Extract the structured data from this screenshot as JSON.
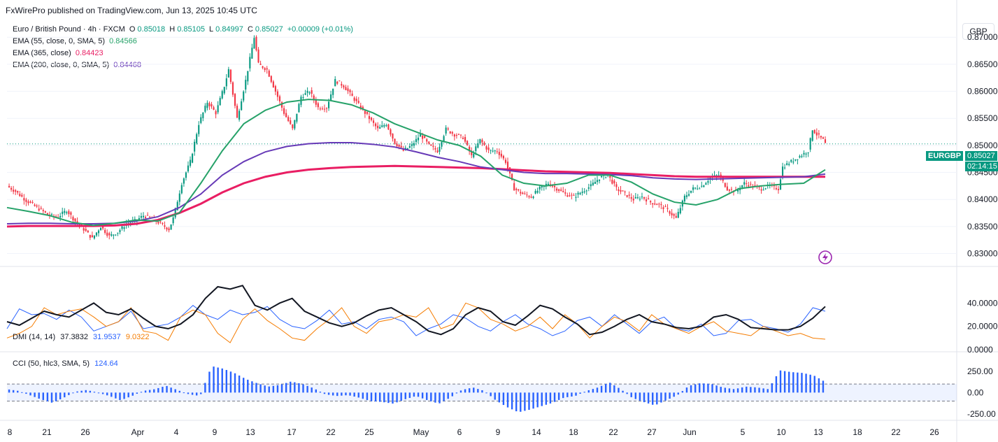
{
  "header": {
    "publisher": "FxWirePro published on TradingView.com, Jun 13, 2025 10:45 UTC"
  },
  "legend": {
    "symbol": "Euro / British Pound · 4h · FXCM",
    "o_label": "O",
    "o": "0.85018",
    "h_label": "H",
    "h": "0.85105",
    "l_label": "L",
    "l": "0.84997",
    "c_label": "C",
    "c": "0.85027",
    "change": "+0.00009 (+0.01%)",
    "ema55_label": "EMA (55, close, 0, SMA, 5)",
    "ema55_value": "0.84566",
    "ema365_label": "EMA (365, close)",
    "ema365_value": "0.84423",
    "ema200_label": "EMA (200, close, 0, SMA, 5)",
    "ema200_value": "0.84468"
  },
  "currency": "GBP",
  "price_tag": {
    "symbol": "EURGBP",
    "price": "0.85027",
    "countdown": "02:14:15"
  },
  "colors": {
    "up": "#089981",
    "down": "#f23645",
    "ema55": "#26a269",
    "ema365": "#e91e63",
    "ema200": "#673ab7",
    "dmi_adx": "#131722",
    "dmi_plus": "#2962ff",
    "dmi_minus": "#f57c00",
    "cci": "#2962ff"
  },
  "dmi": {
    "label": "DMI (14, 14)",
    "adx": "37.3832",
    "plus": "31.9537",
    "minus": "9.0322"
  },
  "cci": {
    "label": "CCI (50, hlc3, SMA, 5)",
    "value": "124.64"
  },
  "chart_data": {
    "type": "candlestick",
    "title": "Euro / British Pound · 4h · FXCM",
    "x_ticks": [
      "8",
      "21",
      "26",
      "Apr",
      "4",
      "9",
      "13",
      "17",
      "22",
      "25",
      "May",
      "6",
      "9",
      "14",
      "18",
      "22",
      "27",
      "Jun",
      "5",
      "10",
      "13",
      "18",
      "22",
      "26"
    ],
    "price_ticks": [
      "0.87000",
      "0.86500",
      "0.86000",
      "0.85500",
      "0.85000",
      "0.84500",
      "0.84000",
      "0.83500",
      "0.83000"
    ],
    "dmi_ticks": [
      "40.0000",
      "20.0000",
      "0.0000"
    ],
    "cci_ticks": [
      "250.00",
      "0.00",
      "-250.00"
    ],
    "ylim": [
      0.828,
      0.873
    ],
    "last_price": 0.85027,
    "close_path": [
      {
        "t": 0,
        "v": 0.8425
      },
      {
        "t": 4,
        "v": 0.8415
      },
      {
        "t": 9,
        "v": 0.8398
      },
      {
        "t": 14,
        "v": 0.8385
      },
      {
        "t": 20,
        "v": 0.837
      },
      {
        "t": 24,
        "v": 0.8368
      },
      {
        "t": 28,
        "v": 0.838
      },
      {
        "t": 32,
        "v": 0.836
      },
      {
        "t": 36,
        "v": 0.8345
      },
      {
        "t": 40,
        "v": 0.8328
      },
      {
        "t": 44,
        "v": 0.835
      },
      {
        "t": 48,
        "v": 0.8332
      },
      {
        "t": 52,
        "v": 0.834
      },
      {
        "t": 56,
        "v": 0.8355
      },
      {
        "t": 60,
        "v": 0.836
      },
      {
        "t": 64,
        "v": 0.837
      },
      {
        "t": 68,
        "v": 0.8365
      },
      {
        "t": 72,
        "v": 0.8355
      },
      {
        "t": 76,
        "v": 0.8345
      },
      {
        "t": 78,
        "v": 0.8365
      },
      {
        "t": 82,
        "v": 0.843
      },
      {
        "t": 86,
        "v": 0.847
      },
      {
        "t": 90,
        "v": 0.854
      },
      {
        "t": 94,
        "v": 0.858
      },
      {
        "t": 98,
        "v": 0.856
      },
      {
        "t": 102,
        "v": 0.861
      },
      {
        "t": 104,
        "v": 0.864
      },
      {
        "t": 108,
        "v": 0.855
      },
      {
        "t": 112,
        "v": 0.862
      },
      {
        "t": 116,
        "v": 0.87
      },
      {
        "t": 118,
        "v": 0.865
      },
      {
        "t": 122,
        "v": 0.864
      },
      {
        "t": 126,
        "v": 0.86
      },
      {
        "t": 130,
        "v": 0.856
      },
      {
        "t": 134,
        "v": 0.853
      },
      {
        "t": 138,
        "v": 0.859
      },
      {
        "t": 142,
        "v": 0.86
      },
      {
        "t": 146,
        "v": 0.857
      },
      {
        "t": 150,
        "v": 0.857
      },
      {
        "t": 154,
        "v": 0.862
      },
      {
        "t": 158,
        "v": 0.861
      },
      {
        "t": 162,
        "v": 0.859
      },
      {
        "t": 166,
        "v": 0.857
      },
      {
        "t": 170,
        "v": 0.855
      },
      {
        "t": 174,
        "v": 0.853
      },
      {
        "t": 178,
        "v": 0.854
      },
      {
        "t": 182,
        "v": 0.8505
      },
      {
        "t": 186,
        "v": 0.849
      },
      {
        "t": 190,
        "v": 0.85
      },
      {
        "t": 194,
        "v": 0.852
      },
      {
        "t": 198,
        "v": 0.85
      },
      {
        "t": 202,
        "v": 0.849
      },
      {
        "t": 206,
        "v": 0.853
      },
      {
        "t": 210,
        "v": 0.852
      },
      {
        "t": 214,
        "v": 0.8515
      },
      {
        "t": 218,
        "v": 0.848
      },
      {
        "t": 222,
        "v": 0.851
      },
      {
        "t": 226,
        "v": 0.849
      },
      {
        "t": 230,
        "v": 0.849
      },
      {
        "t": 234,
        "v": 0.847
      },
      {
        "t": 238,
        "v": 0.842
      },
      {
        "t": 242,
        "v": 0.841
      },
      {
        "t": 246,
        "v": 0.8405
      },
      {
        "t": 250,
        "v": 0.842
      },
      {
        "t": 254,
        "v": 0.843
      },
      {
        "t": 258,
        "v": 0.842
      },
      {
        "t": 262,
        "v": 0.841
      },
      {
        "t": 266,
        "v": 0.8405
      },
      {
        "t": 270,
        "v": 0.8415
      },
      {
        "t": 274,
        "v": 0.8425
      },
      {
        "t": 278,
        "v": 0.844
      },
      {
        "t": 282,
        "v": 0.8445
      },
      {
        "t": 286,
        "v": 0.842
      },
      {
        "t": 290,
        "v": 0.841
      },
      {
        "t": 294,
        "v": 0.84
      },
      {
        "t": 298,
        "v": 0.8405
      },
      {
        "t": 302,
        "v": 0.8395
      },
      {
        "t": 306,
        "v": 0.839
      },
      {
        "t": 310,
        "v": 0.838
      },
      {
        "t": 314,
        "v": 0.8365
      },
      {
        "t": 316,
        "v": 0.8385
      },
      {
        "t": 318,
        "v": 0.8405
      },
      {
        "t": 322,
        "v": 0.842
      },
      {
        "t": 326,
        "v": 0.8425
      },
      {
        "t": 330,
        "v": 0.844
      },
      {
        "t": 334,
        "v": 0.8445
      },
      {
        "t": 338,
        "v": 0.842
      },
      {
        "t": 342,
        "v": 0.8415
      },
      {
        "t": 346,
        "v": 0.843
      },
      {
        "t": 350,
        "v": 0.8425
      },
      {
        "t": 354,
        "v": 0.842
      },
      {
        "t": 358,
        "v": 0.8425
      },
      {
        "t": 362,
        "v": 0.842
      },
      {
        "t": 364,
        "v": 0.846
      },
      {
        "t": 368,
        "v": 0.847
      },
      {
        "t": 372,
        "v": 0.848
      },
      {
        "t": 376,
        "v": 0.849
      },
      {
        "t": 378,
        "v": 0.853
      },
      {
        "t": 380,
        "v": 0.852
      },
      {
        "t": 383,
        "v": 0.851
      },
      {
        "t": 384,
        "v": 0.85027
      }
    ],
    "ema55": [
      0.8385,
      0.8378,
      0.837,
      0.8358,
      0.8352,
      0.8356,
      0.8362,
      0.836,
      0.8375,
      0.843,
      0.849,
      0.854,
      0.8565,
      0.858,
      0.8585,
      0.8583,
      0.8575,
      0.856,
      0.854,
      0.8525,
      0.851,
      0.85,
      0.848,
      0.8445,
      0.843,
      0.8425,
      0.843,
      0.8445,
      0.8445,
      0.8432,
      0.841,
      0.8395,
      0.839,
      0.84,
      0.842,
      0.8425,
      0.8428,
      0.843,
      0.8455
    ],
    "ema200": [
      0.8355,
      0.8356,
      0.8356,
      0.8355,
      0.8355,
      0.8356,
      0.836,
      0.8368,
      0.8385,
      0.841,
      0.8445,
      0.847,
      0.8488,
      0.8498,
      0.8503,
      0.8505,
      0.8505,
      0.8502,
      0.8497,
      0.8488,
      0.8478,
      0.847,
      0.846,
      0.8455,
      0.845,
      0.8448,
      0.8448,
      0.8447,
      0.8446,
      0.8444,
      0.844,
      0.8438,
      0.8437,
      0.8438,
      0.8439,
      0.844,
      0.8441,
      0.8442,
      0.8447
    ],
    "ema365": [
      0.835,
      0.8351,
      0.8351,
      0.8351,
      0.8351,
      0.8352,
      0.8355,
      0.8362,
      0.8375,
      0.8392,
      0.8413,
      0.843,
      0.8442,
      0.845,
      0.8455,
      0.8458,
      0.846,
      0.8461,
      0.8462,
      0.8461,
      0.846,
      0.8459,
      0.8458,
      0.8456,
      0.8454,
      0.8452,
      0.8451,
      0.845,
      0.8449,
      0.8447,
      0.8445,
      0.8443,
      0.8442,
      0.8442,
      0.8442,
      0.8442,
      0.8442,
      0.8442,
      0.8442
    ],
    "dmi_adx": [
      24,
      21,
      27,
      33,
      30,
      28,
      34,
      40,
      32,
      30,
      35,
      27,
      20,
      18,
      22,
      30,
      44,
      54,
      52,
      55,
      38,
      34,
      40,
      44,
      33,
      28,
      23,
      20,
      23,
      29,
      34,
      36,
      30,
      24,
      16,
      13,
      18,
      30,
      36,
      33,
      24,
      21,
      29,
      38,
      35,
      28,
      22,
      13,
      15,
      20,
      26,
      30,
      24,
      22,
      19,
      18,
      20,
      28,
      30,
      26,
      19,
      18,
      17,
      17,
      20,
      27,
      37
    ],
    "dmi_plus": [
      18,
      35,
      30,
      31,
      26,
      34,
      28,
      16,
      20,
      24,
      33,
      18,
      20,
      22,
      28,
      38,
      30,
      26,
      34,
      30,
      32,
      37,
      26,
      20,
      18,
      25,
      34,
      22,
      24,
      18,
      26,
      28,
      24,
      12,
      18,
      22,
      30,
      27,
      20,
      16,
      24,
      30,
      22,
      18,
      12,
      16,
      25,
      28,
      20,
      30,
      22,
      14,
      24,
      28,
      18,
      16,
      22,
      12,
      14,
      25,
      26,
      20,
      18,
      15,
      22,
      36,
      33
    ],
    "dmi_minus": [
      10,
      14,
      20,
      36,
      30,
      33,
      35,
      28,
      20,
      24,
      36,
      16,
      14,
      8,
      28,
      34,
      30,
      14,
      6,
      26,
      35,
      25,
      18,
      10,
      8,
      18,
      26,
      36,
      20,
      14,
      24,
      26,
      30,
      28,
      36,
      18,
      22,
      40,
      36,
      26,
      22,
      16,
      20,
      28,
      18,
      30,
      22,
      10,
      20,
      28,
      24,
      16,
      30,
      22,
      18,
      14,
      20,
      24,
      16,
      14,
      12,
      20,
      16,
      12,
      14,
      10,
      9
    ],
    "cci": [
      40,
      20,
      -30,
      -80,
      -120,
      -60,
      10,
      30,
      0,
      -40,
      -90,
      -40,
      20,
      40,
      80,
      30,
      -20,
      -40,
      310,
      280,
      230,
      160,
      110,
      70,
      90,
      130,
      100,
      50,
      -20,
      -40,
      -30,
      -60,
      -100,
      -110,
      -130,
      -80,
      -40,
      -90,
      -130,
      -60,
      30,
      60,
      20,
      -90,
      -170,
      -230,
      -200,
      -160,
      -120,
      -60,
      -40,
      20,
      60,
      120,
      40,
      -60,
      -110,
      -150,
      -90,
      -30,
      80,
      110,
      100,
      60,
      40,
      70,
      60,
      40,
      260,
      240,
      230,
      200,
      124.64
    ]
  }
}
